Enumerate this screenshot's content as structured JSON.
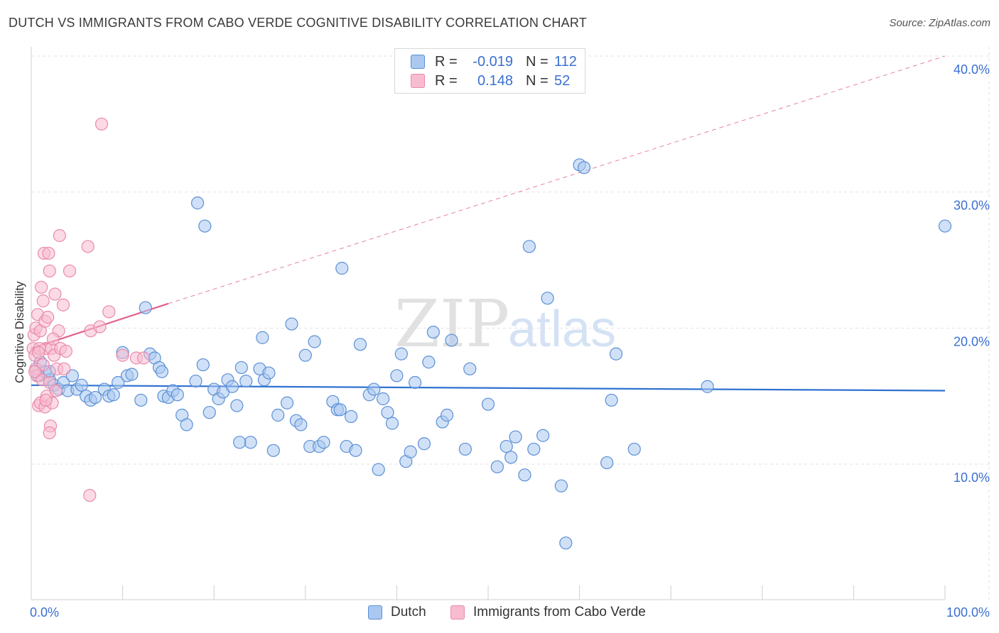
{
  "title": "DUTCH VS IMMIGRANTS FROM CABO VERDE COGNITIVE DISABILITY CORRELATION CHART",
  "source": "Source: ZipAtlas.com",
  "watermark": {
    "zip": "ZIP",
    "atlas": "atlas"
  },
  "legend": {
    "rows": [
      {
        "r_label": "R =",
        "r_value": "-0.019",
        "n_label": "N =",
        "n_value": "112"
      },
      {
        "r_label": "R =",
        "r_value": "0.148",
        "n_label": "N =",
        "n_value": "52"
      }
    ],
    "series_names": [
      "Dutch",
      "Immigrants from Cabo Verde"
    ]
  },
  "colors": {
    "dutch_fill": "#aac8f0",
    "dutch_stroke": "#5b8fd6",
    "dutch_line": "#2f72d0",
    "cabo_fill": "#f8bcd0",
    "cabo_stroke": "#e98aaa",
    "cabo_line": "#e0628c",
    "grid": "#e2e2e2",
    "axis_text": "#3a6fd0"
  },
  "chart_data": {
    "type": "scatter",
    "title": "DUTCH VS IMMIGRANTS FROM CABO VERDE COGNITIVE DISABILITY CORRELATION CHART",
    "xlabel": "",
    "ylabel": "Cognitive Disability",
    "xlim": [
      0,
      100
    ],
    "ylim": [
      0,
      42
    ],
    "x_tick_labels": [
      "0.0%",
      "100.0%"
    ],
    "y_ticks": [
      10,
      20,
      30,
      40
    ],
    "y_tick_labels": [
      "10.0%",
      "20.0%",
      "30.0%",
      "40.0%"
    ],
    "grid": true,
    "series": [
      {
        "name": "Dutch",
        "r": -0.019,
        "n": 112,
        "trend": {
          "x": [
            0,
            100
          ],
          "y": [
            15.8,
            15.4
          ],
          "style": "solid"
        },
        "points": [
          [
            0.5,
            17.0
          ],
          [
            0.8,
            16.5
          ],
          [
            1.0,
            17.5
          ],
          [
            1.5,
            16.8
          ],
          [
            2.0,
            16.2
          ],
          [
            2.5,
            15.8
          ],
          [
            3.0,
            15.5
          ],
          [
            3.5,
            16.0
          ],
          [
            4.0,
            15.4
          ],
          [
            4.5,
            16.5
          ],
          [
            5.0,
            15.5
          ],
          [
            5.5,
            15.8
          ],
          [
            6.0,
            15.0
          ],
          [
            6.5,
            14.7
          ],
          [
            7.0,
            14.9
          ],
          [
            8.0,
            15.5
          ],
          [
            8.5,
            15.0
          ],
          [
            9.5,
            16.0
          ],
          [
            10.0,
            18.2
          ],
          [
            10.5,
            16.5
          ],
          [
            11.0,
            16.6
          ],
          [
            12.0,
            14.7
          ],
          [
            12.5,
            21.5
          ],
          [
            13.0,
            18.1
          ],
          [
            13.5,
            17.8
          ],
          [
            14.0,
            17.1
          ],
          [
            14.3,
            16.8
          ],
          [
            14.5,
            15.0
          ],
          [
            15.0,
            14.9
          ],
          [
            15.5,
            15.4
          ],
          [
            16.0,
            15.1
          ],
          [
            16.5,
            13.6
          ],
          [
            17.0,
            12.9
          ],
          [
            18.0,
            16.1
          ],
          [
            18.2,
            29.2
          ],
          [
            18.8,
            17.3
          ],
          [
            19.0,
            27.5
          ],
          [
            19.5,
            13.8
          ],
          [
            20.0,
            15.5
          ],
          [
            20.5,
            14.8
          ],
          [
            21.0,
            15.3
          ],
          [
            21.5,
            16.2
          ],
          [
            22.0,
            15.7
          ],
          [
            22.5,
            14.3
          ],
          [
            23.0,
            17.1
          ],
          [
            23.5,
            16.1
          ],
          [
            24.0,
            11.6
          ],
          [
            25.0,
            17.0
          ],
          [
            25.3,
            19.3
          ],
          [
            25.5,
            16.2
          ],
          [
            26.0,
            16.7
          ],
          [
            26.5,
            11.0
          ],
          [
            27.0,
            13.6
          ],
          [
            28.0,
            14.5
          ],
          [
            28.5,
            20.3
          ],
          [
            29.0,
            13.2
          ],
          [
            29.5,
            12.9
          ],
          [
            30.0,
            18.0
          ],
          [
            30.5,
            11.3
          ],
          [
            31.0,
            19.0
          ],
          [
            31.5,
            11.3
          ],
          [
            32.0,
            11.6
          ],
          [
            33.0,
            14.6
          ],
          [
            33.5,
            14.0
          ],
          [
            34.0,
            24.4
          ],
          [
            34.5,
            11.3
          ],
          [
            35.0,
            13.5
          ],
          [
            35.5,
            11.0
          ],
          [
            36.0,
            18.8
          ],
          [
            37.0,
            15.1
          ],
          [
            37.5,
            15.5
          ],
          [
            38.0,
            9.6
          ],
          [
            38.5,
            14.8
          ],
          [
            39.0,
            13.8
          ],
          [
            39.5,
            13.0
          ],
          [
            40.0,
            16.5
          ],
          [
            41.0,
            10.2
          ],
          [
            41.5,
            10.9
          ],
          [
            42.0,
            16.0
          ],
          [
            43.0,
            11.5
          ],
          [
            43.5,
            17.5
          ],
          [
            44.0,
            19.7
          ],
          [
            45.0,
            13.1
          ],
          [
            45.5,
            13.6
          ],
          [
            46.0,
            19.1
          ],
          [
            47.5,
            11.1
          ],
          [
            48.0,
            17.0
          ],
          [
            50.0,
            14.4
          ],
          [
            51.0,
            9.8
          ],
          [
            52.0,
            11.3
          ],
          [
            52.5,
            10.5
          ],
          [
            53.0,
            12.0
          ],
          [
            54.0,
            9.2
          ],
          [
            54.5,
            26.0
          ],
          [
            56.0,
            12.1
          ],
          [
            56.5,
            22.2
          ],
          [
            58.0,
            8.4
          ],
          [
            58.5,
            4.2
          ],
          [
            60.0,
            32.0
          ],
          [
            60.5,
            31.8
          ],
          [
            63.0,
            10.1
          ],
          [
            63.5,
            14.7
          ],
          [
            64.0,
            18.1
          ],
          [
            66.0,
            11.1
          ],
          [
            74.0,
            15.7
          ],
          [
            100.0,
            27.5
          ],
          [
            2.0,
            16.8
          ],
          [
            9.0,
            15.1
          ],
          [
            22.8,
            11.6
          ],
          [
            33.8,
            14.0
          ],
          [
            40.5,
            18.1
          ],
          [
            55.0,
            11.1
          ]
        ]
      },
      {
        "name": "Immigrants from Cabo Verde",
        "r": 0.148,
        "n": 52,
        "trend": {
          "x": [
            0,
            15
          ],
          "y": [
            18.5,
            21.8
          ],
          "style": "solid",
          "extended_to": [
            100,
            40.0
          ],
          "extended_style": "dashed"
        },
        "points": [
          [
            0.2,
            18.5
          ],
          [
            0.3,
            19.5
          ],
          [
            0.4,
            18.0
          ],
          [
            0.5,
            20.0
          ],
          [
            0.5,
            17.0
          ],
          [
            0.6,
            16.5
          ],
          [
            0.7,
            21.0
          ],
          [
            0.8,
            14.3
          ],
          [
            1.0,
            14.5
          ],
          [
            1.0,
            19.8
          ],
          [
            1.1,
            23.0
          ],
          [
            1.2,
            16.2
          ],
          [
            1.3,
            22.0
          ],
          [
            1.4,
            25.5
          ],
          [
            1.5,
            14.2
          ],
          [
            1.5,
            20.5
          ],
          [
            1.6,
            18.5
          ],
          [
            1.7,
            15.0
          ],
          [
            1.8,
            20.8
          ],
          [
            2.0,
            24.2
          ],
          [
            2.0,
            16.0
          ],
          [
            2.1,
            12.8
          ],
          [
            2.2,
            18.5
          ],
          [
            2.3,
            14.5
          ],
          [
            2.5,
            18.0
          ],
          [
            2.6,
            22.5
          ],
          [
            2.8,
            17.0
          ],
          [
            3.0,
            19.8
          ],
          [
            3.1,
            26.8
          ],
          [
            3.2,
            18.5
          ],
          [
            3.5,
            21.7
          ],
          [
            3.6,
            17.0
          ],
          [
            4.2,
            24.2
          ],
          [
            6.2,
            26.0
          ],
          [
            6.5,
            19.8
          ],
          [
            7.5,
            20.1
          ],
          [
            7.7,
            35.0
          ],
          [
            8.5,
            21.2
          ],
          [
            10.0,
            18.0
          ],
          [
            11.5,
            17.8
          ],
          [
            6.4,
            7.7
          ],
          [
            2.0,
            12.3
          ],
          [
            1.9,
            25.5
          ],
          [
            0.9,
            18.5
          ],
          [
            2.4,
            19.2
          ],
          [
            3.8,
            18.3
          ],
          [
            1.3,
            17.3
          ],
          [
            0.4,
            16.8
          ],
          [
            1.6,
            14.7
          ],
          [
            2.7,
            15.4
          ],
          [
            0.8,
            18.2
          ],
          [
            12.3,
            17.8
          ]
        ]
      }
    ]
  }
}
